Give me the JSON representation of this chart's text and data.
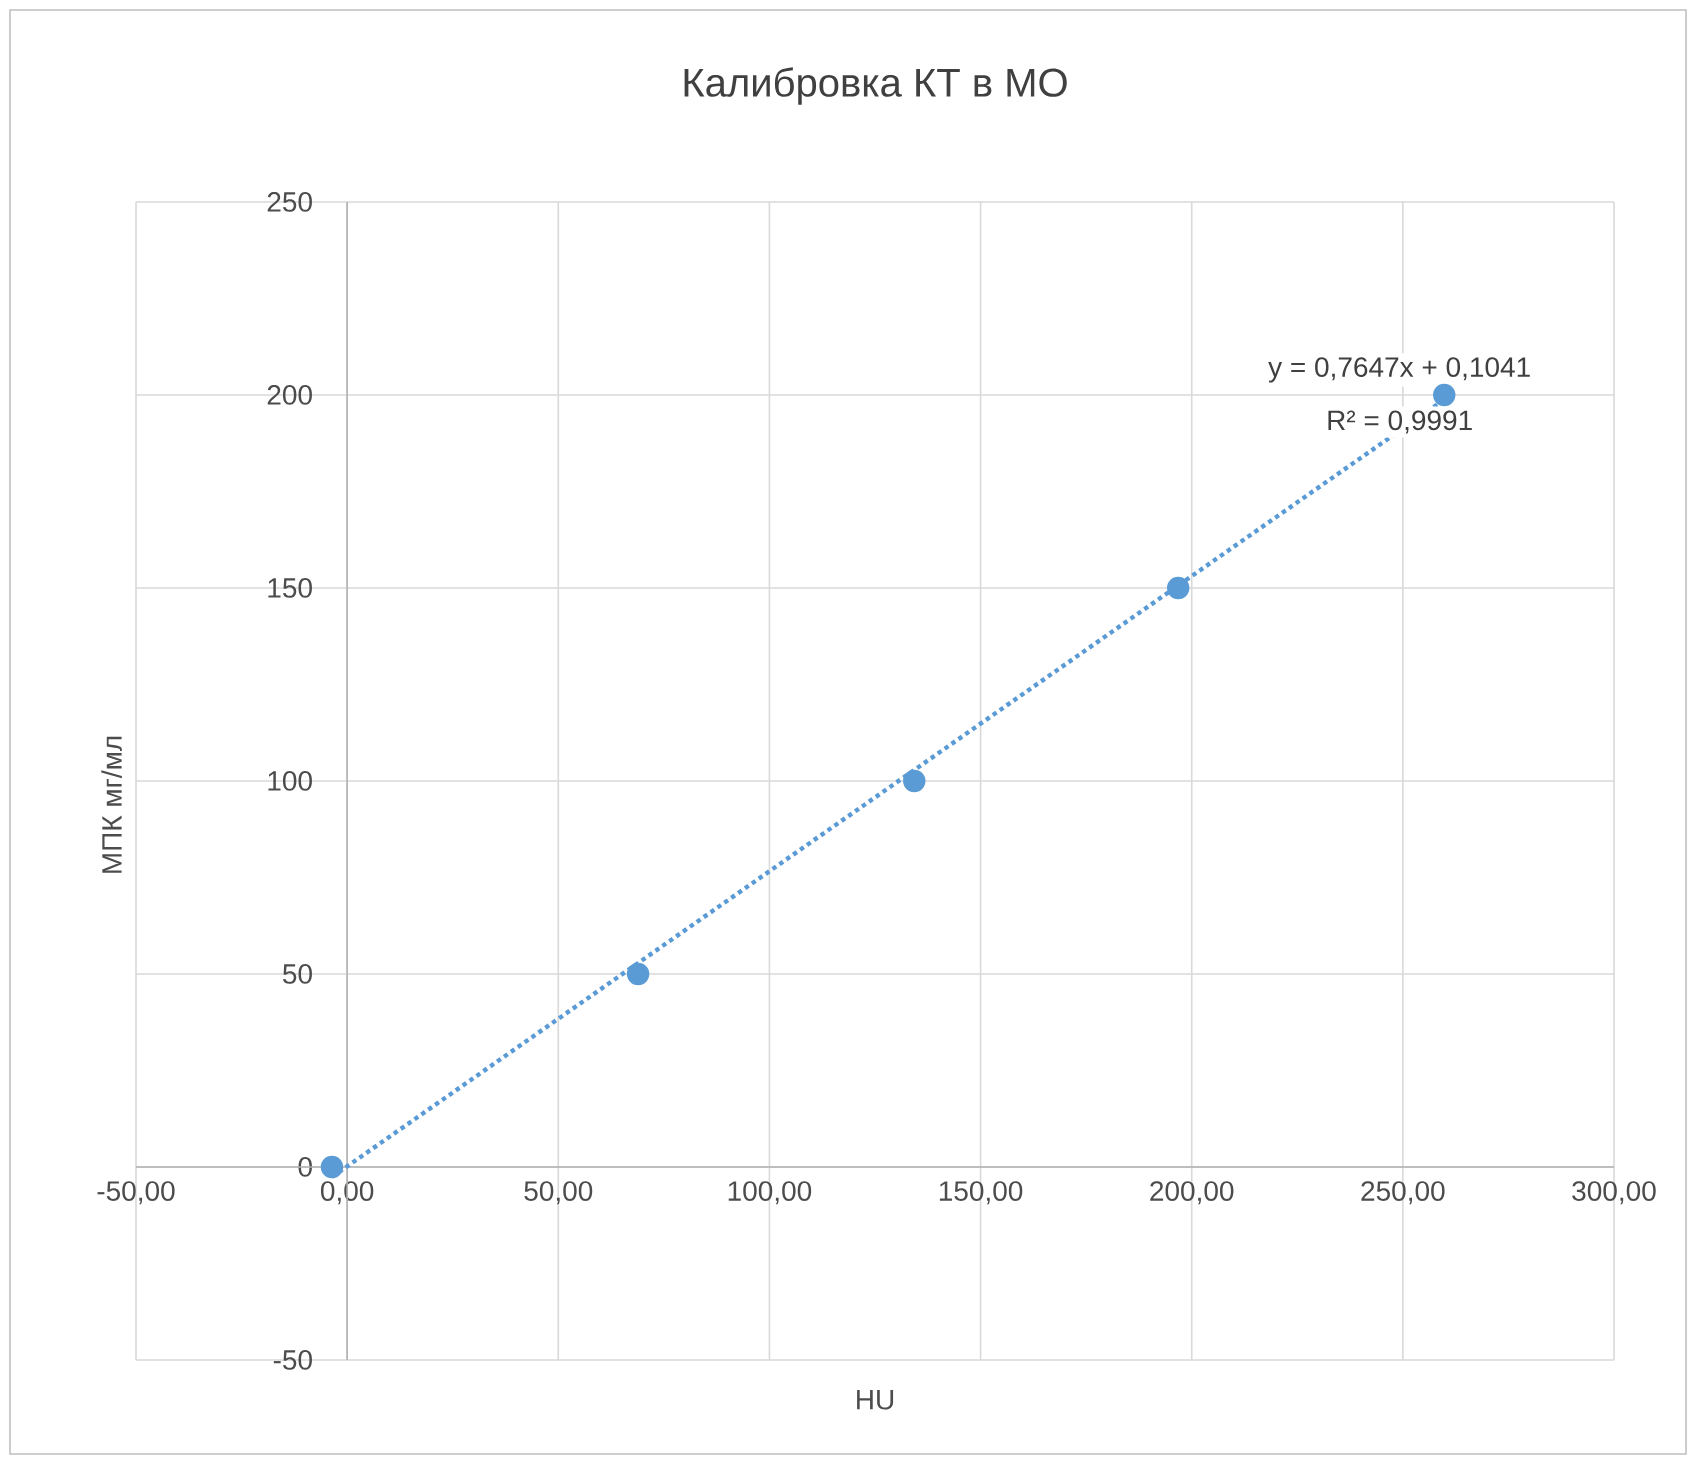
{
  "chart_data": {
    "type": "scatter",
    "title": "Калибровка КТ в МО",
    "xlabel": "HU",
    "ylabel": "МПК мг/мл",
    "xlim": [
      -50,
      300
    ],
    "ylim": [
      -50,
      250
    ],
    "xticks": [
      {
        "value": -50,
        "label": "-50,00"
      },
      {
        "value": 0,
        "label": "0,00"
      },
      {
        "value": 50,
        "label": "50,00"
      },
      {
        "value": 100,
        "label": "100,00"
      },
      {
        "value": 150,
        "label": "150,00"
      },
      {
        "value": 200,
        "label": "200,00"
      },
      {
        "value": 250,
        "label": "250,00"
      },
      {
        "value": 300,
        "label": "300,00"
      }
    ],
    "yticks": [
      -50,
      0,
      50,
      100,
      150,
      200,
      250
    ],
    "grid": true,
    "series": [
      {
        "color": "#5b9bd5",
        "marker": "circle",
        "x": [
          -3.6,
          68.9,
          134.3,
          196.8,
          259.8
        ],
        "values": [
          0,
          50,
          100,
          150,
          200
        ]
      },
      {
        "type": "line",
        "color": "#5b9bd5",
        "marker": "none",
        "line_style": "dotted",
        "x": [
          -3.6,
          259.8
        ],
        "values": [
          -2.6,
          198.8
        ]
      }
    ],
    "annotations": [
      "y = 0,7647x + 0,1041",
      "R² = 0,9991"
    ]
  }
}
